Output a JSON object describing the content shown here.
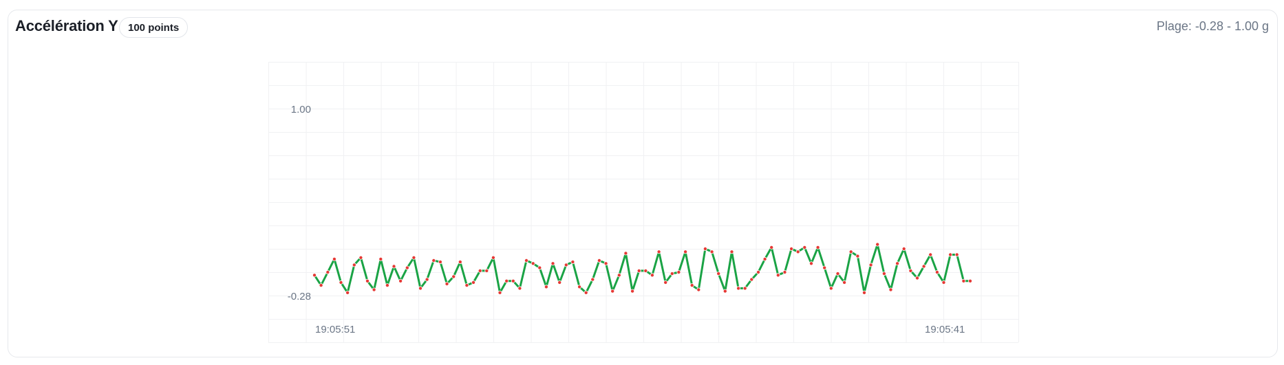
{
  "header": {
    "title": "Accélération Y",
    "badge": "100 points",
    "range_label": "Plage: -0.28 - 1.00 g"
  },
  "colors": {
    "line": "#1aa345",
    "point": "#e53935",
    "grid": "#f0f1f3"
  },
  "chart_data": {
    "type": "line",
    "title": "Accélération Y",
    "xlabel": "",
    "ylabel": "",
    "ylim": [
      -0.28,
      1.0
    ],
    "y_ticks": [
      "1.00",
      "-0.28"
    ],
    "x_ticks": [
      "19:05:51",
      "19:05:41"
    ],
    "grid": true,
    "legend": "none",
    "series": [
      {
        "values": [
          -0.14,
          -0.21,
          -0.12,
          -0.03,
          -0.19,
          -0.26,
          -0.07,
          -0.02,
          -0.18,
          -0.24,
          -0.03,
          -0.21,
          -0.08,
          -0.18,
          -0.09,
          -0.02,
          -0.23,
          -0.17,
          -0.04,
          -0.05,
          -0.2,
          -0.15,
          -0.05,
          -0.21,
          -0.19,
          -0.11,
          -0.11,
          -0.02,
          -0.26,
          -0.18,
          -0.18,
          -0.23,
          -0.04,
          -0.06,
          -0.09,
          -0.22,
          -0.06,
          -0.19,
          -0.07,
          -0.05,
          -0.22,
          -0.26,
          -0.17,
          -0.04,
          -0.06,
          -0.25,
          -0.14,
          0.01,
          -0.25,
          -0.11,
          -0.11,
          -0.14,
          0.02,
          -0.19,
          -0.13,
          -0.12,
          0.02,
          -0.21,
          -0.24,
          0.04,
          0.02,
          -0.13,
          -0.25,
          0.02,
          -0.23,
          -0.23,
          -0.17,
          -0.12,
          -0.03,
          0.05,
          -0.14,
          -0.12,
          0.04,
          0.02,
          0.05,
          -0.06,
          0.05,
          -0.09,
          -0.23,
          -0.13,
          -0.19,
          0.02,
          -0.01,
          -0.26,
          -0.07,
          0.07,
          -0.13,
          -0.24,
          -0.06,
          0.04,
          -0.11,
          -0.16,
          -0.08,
          0.0,
          -0.12,
          -0.19,
          0.0,
          0.0,
          -0.18,
          -0.18
        ]
      }
    ]
  }
}
